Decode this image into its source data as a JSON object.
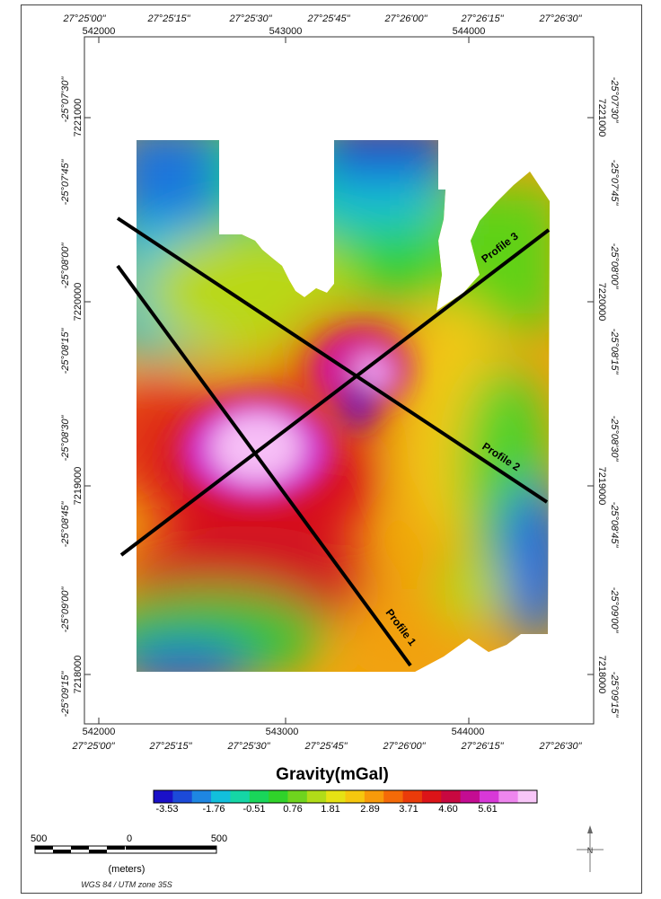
{
  "map": {
    "lon_top": [
      "27°25'00\"",
      "27°25'15\"",
      "27°25'30\"",
      "27°25'45\"",
      "27°26'00\"",
      "27°26'15\"",
      "27°26'30\""
    ],
    "lon_bottom": [
      "27°25'00\"",
      "27°25'15\"",
      "27°25'30\"",
      "27°25'45\"",
      "27°26'00\"",
      "27°26'15\"",
      "27°26'30\""
    ],
    "easting_top": [
      "542000",
      "543000",
      "544000"
    ],
    "easting_bottom": [
      "542000",
      "543000",
      "544000"
    ],
    "lat_left": [
      "-25°07'30\"",
      "-25°07'45\"",
      "-25°08'00\"",
      "-25°08'15\"",
      "-25°08'30\"",
      "-25°08'45\"",
      "-25°09'00\"",
      "-25°09'15\""
    ],
    "lat_right": [
      "-25°07'30\"",
      "-25°07'45\"",
      "-25°08'00\"",
      "-25°08'15\"",
      "-25°08'30\"",
      "-25°08'45\"",
      "-25°09'00\"",
      "-25°09'15\""
    ],
    "northing_left": [
      "7221000",
      "7220000",
      "7219000",
      "7218000"
    ],
    "northing_right": [
      "7221000",
      "7220000",
      "7219000",
      "7218000"
    ],
    "profiles": [
      {
        "label": "Profile 1"
      },
      {
        "label": "Profile 2"
      },
      {
        "label": "Profile 3"
      }
    ]
  },
  "legend": {
    "title": "Gravity(mGal)",
    "values": [
      "-3.53",
      "-1.76",
      "-0.51",
      "0.76",
      "1.81",
      "2.89",
      "3.71",
      "4.60",
      "5.61"
    ],
    "colors": [
      "#1a10c8",
      "#1c4ad8",
      "#1e86e2",
      "#12bfdc",
      "#15d6a6",
      "#19d65a",
      "#30d22a",
      "#6fd41e",
      "#b1dc18",
      "#e6e214",
      "#f6c70e",
      "#f89a0a",
      "#f46a08",
      "#ea3b0a",
      "#dc1418",
      "#c80840",
      "#c40c92",
      "#d838d8",
      "#ee86ee",
      "#f8c6f8"
    ]
  },
  "scale": {
    "left": "500",
    "mid": "0",
    "right": "500",
    "unit": "(meters)",
    "projection": "WGS 84 / UTM zone 35S"
  },
  "north_label": "N"
}
